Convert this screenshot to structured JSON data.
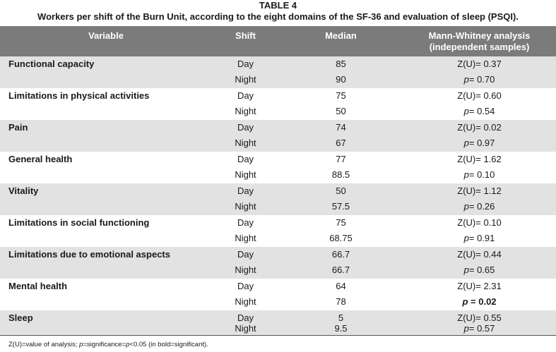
{
  "caption": {
    "title": "TABLE 4",
    "subtitle": "Workers per shift of the Burn Unit, according to the eight domains of the SF-36 and evaluation of sleep (PSQI)."
  },
  "headers": {
    "variable": "Variable",
    "shift": "Shift",
    "median": "Median",
    "mw_line1": "Mann-Whitney analysis",
    "mw_line2": "(independent samples)"
  },
  "rows": [
    {
      "variable": "Functional capacity",
      "day": {
        "shift": "Day",
        "median": "85",
        "stat": "Z(U)= 0.37"
      },
      "night": {
        "shift": "Night",
        "median": "90",
        "p_label": "p",
        "p_value": "= 0.70"
      }
    },
    {
      "variable": "Limitations in physical activities",
      "day": {
        "shift": "Day",
        "median": "75",
        "stat": "Z(U)= 0.60"
      },
      "night": {
        "shift": "Night",
        "median": "50",
        "p_label": "p",
        "p_value": "= 0.54"
      }
    },
    {
      "variable": "Pain",
      "day": {
        "shift": "Day",
        "median": "74",
        "stat": "Z(U)= 0.02"
      },
      "night": {
        "shift": "Night",
        "median": "67",
        "p_label": "p",
        "p_value": "= 0.97"
      }
    },
    {
      "variable": "General health",
      "day": {
        "shift": "Day",
        "median": "77",
        "stat": "Z(U)= 1.62"
      },
      "night": {
        "shift": "Night",
        "median": "88.5",
        "p_label": "p",
        "p_value": "= 0.10"
      }
    },
    {
      "variable": "Vitality",
      "day": {
        "shift": "Day",
        "median": "50",
        "stat": "Z(U)= 1.12"
      },
      "night": {
        "shift": "Night",
        "median": "57.5",
        "p_label": "p",
        "p_value": "= 0.26"
      }
    },
    {
      "variable": "Limitations in social functioning",
      "day": {
        "shift": "Day",
        "median": "75",
        "stat": "Z(U)= 0.10"
      },
      "night": {
        "shift": "Night",
        "median": "68.75",
        "p_label": "p",
        "p_value": "= 0.91"
      }
    },
    {
      "variable": "Limitations due to emotional aspects",
      "day": {
        "shift": "Day",
        "median": "66.7",
        "stat": "Z(U)= 0.44"
      },
      "night": {
        "shift": "Night",
        "median": "66.7",
        "p_label": "p",
        "p_value": "= 0.65"
      }
    },
    {
      "variable": "Mental health",
      "day": {
        "shift": "Day",
        "median": "64",
        "stat": "Z(U)= 2.31"
      },
      "night": {
        "shift": "Night",
        "median": "78",
        "p_label": "p",
        "p_value": " = 0.02",
        "significant": true
      }
    },
    {
      "variable": "Sleep",
      "day": {
        "shift": "Day",
        "median": "5",
        "stat": "Z(U)= 0.55"
      },
      "night": {
        "shift": "Night",
        "median": "9.5",
        "p_label": "p",
        "p_value": "= 0.57"
      }
    }
  ],
  "footnote": {
    "part1": "Z(U)=value of analysis; ",
    "p": "p",
    "part2": "=significance=",
    "p2": "p",
    "part3": "<0.05 (in bold=significant)."
  }
}
